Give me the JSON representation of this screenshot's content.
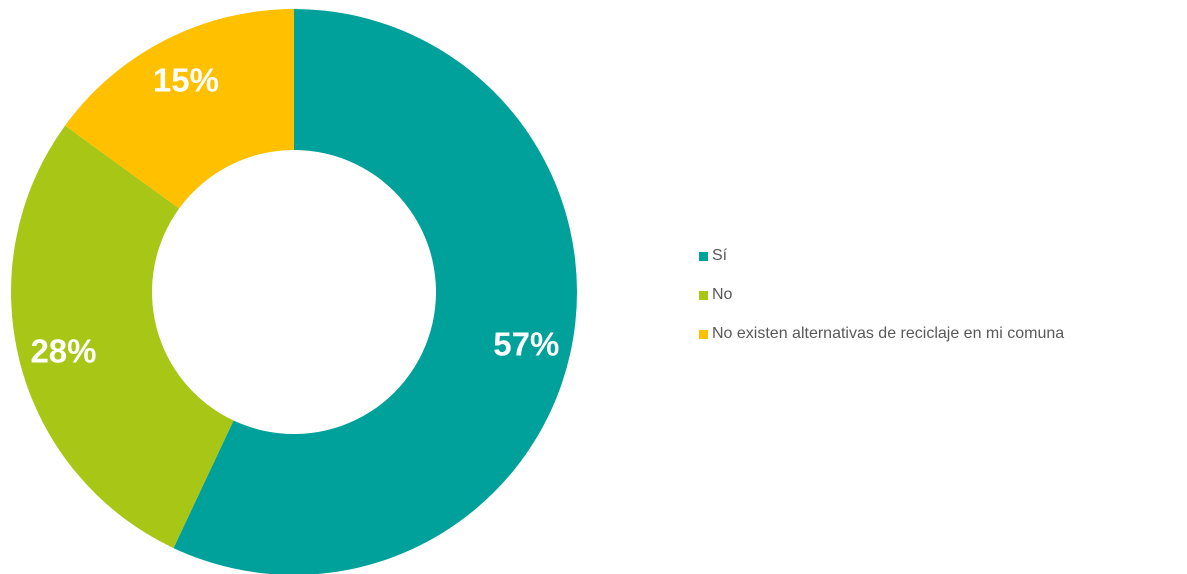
{
  "chart_data": {
    "type": "pie",
    "donut": true,
    "title": "",
    "categories": [
      "Sí",
      "No",
      "No existen alternativas de reciclaje en mi comuna"
    ],
    "values": [
      57,
      28,
      15
    ],
    "labels": [
      "57%",
      "28%",
      "15%"
    ],
    "colors": [
      "#00A19A",
      "#A8C616",
      "#FFC000"
    ],
    "legend_position": "right"
  }
}
